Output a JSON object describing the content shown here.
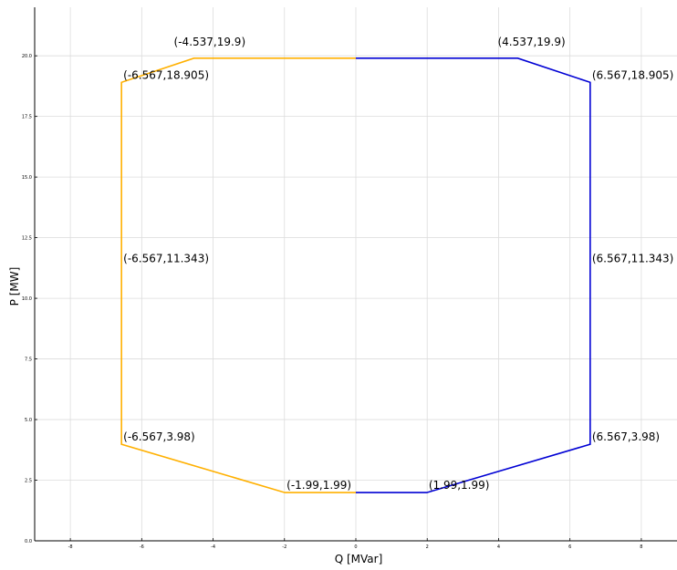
{
  "chart_data": {
    "type": "line",
    "title": "",
    "xlabel": "Q [MVar]",
    "ylabel": "P [MW]",
    "xlim": [
      -9,
      9
    ],
    "ylim": [
      0,
      22
    ],
    "grid": true,
    "xticks": [
      -8,
      -6,
      -4,
      -2,
      0,
      2,
      4,
      6,
      8
    ],
    "xtick_labels": [
      "-8",
      "-6",
      "-4",
      "-2",
      "0",
      "2",
      "4",
      "6",
      "8"
    ],
    "yticks": [
      0,
      2.5,
      5,
      7.5,
      10,
      12.5,
      15,
      17.5,
      20
    ],
    "ytick_labels": [
      "0.0",
      "2.5",
      "5.0",
      "7.5",
      "10.0",
      "12.5",
      "15.0",
      "17.5",
      "20.0"
    ],
    "series": [
      {
        "color": "#ffb000",
        "x": [
          0,
          -4.537,
          -6.567,
          -6.567,
          -6.567,
          -1.99,
          0
        ],
        "y": [
          19.9,
          19.9,
          18.905,
          11.343,
          3.98,
          1.99,
          1.99
        ]
      },
      {
        "color": "#0000d4",
        "x": [
          0,
          4.537,
          6.567,
          6.567,
          6.567,
          1.99,
          0
        ],
        "y": [
          19.9,
          19.9,
          18.905,
          11.343,
          3.98,
          1.99,
          1.99
        ]
      }
    ],
    "annotations": [
      {
        "text": "(-4.537,19.9)",
        "x": -4.537,
        "y": 19.9
      },
      {
        "text": "(4.537,19.9)",
        "x": 4.537,
        "y": 19.9
      },
      {
        "text": "(-6.567,18.905)",
        "x": -6.567,
        "y": 18.905
      },
      {
        "text": "(6.567,18.905)",
        "x": 6.567,
        "y": 18.905
      },
      {
        "text": "(-6.567,11.343)",
        "x": -6.567,
        "y": 11.343
      },
      {
        "text": "(6.567,11.343)",
        "x": 6.567,
        "y": 11.343
      },
      {
        "text": "(-6.567,3.98)",
        "x": -6.567,
        "y": 3.98
      },
      {
        "text": "(6.567,3.98)",
        "x": 6.567,
        "y": 3.98
      },
      {
        "text": "(-1.99,1.99)",
        "x": -1.99,
        "y": 1.99
      },
      {
        "text": "(1.99,1.99)",
        "x": 1.99,
        "y": 1.99
      }
    ]
  }
}
